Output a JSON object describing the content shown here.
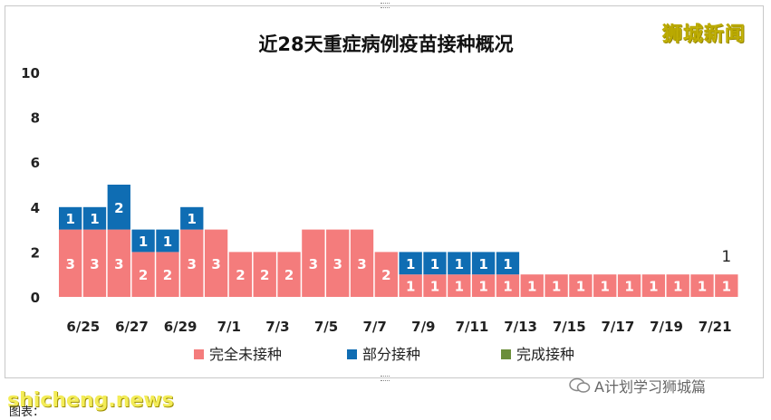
{
  "watermark_top": "狮城新闻",
  "watermark_bottom": "shicheng.news",
  "caption": "图表：",
  "wechat_label": "A计划学习狮城篇",
  "chart_data": {
    "type": "bar",
    "stacked": true,
    "title": "近28天重症病例疫苗接种概况",
    "ylim": [
      0,
      10
    ],
    "yticks": [
      "0",
      "2",
      "4",
      "6",
      "8",
      "10"
    ],
    "categories": [
      "6/25",
      "6/26",
      "6/27",
      "6/28",
      "6/29",
      "6/30",
      "7/1",
      "7/2",
      "7/3",
      "7/4",
      "7/5",
      "7/6",
      "7/7",
      "7/8",
      "7/9",
      "7/10",
      "7/11",
      "7/12",
      "7/13",
      "7/14",
      "7/15",
      "7/16",
      "7/17",
      "7/18",
      "7/19",
      "7/20",
      "7/21",
      "7/22"
    ],
    "xtick_labels": [
      "6/25",
      "6/27",
      "6/29",
      "7/1",
      "7/3",
      "7/5",
      "7/7",
      "7/9",
      "7/11",
      "7/13",
      "7/15",
      "7/17",
      "7/19",
      "7/21"
    ],
    "series": [
      {
        "name": "完全未接种",
        "color": "#f47c7c",
        "values": [
          3,
          3,
          3,
          2,
          2,
          3,
          3,
          2,
          2,
          2,
          3,
          3,
          3,
          2,
          1,
          1,
          1,
          1,
          1,
          1,
          1,
          1,
          1,
          1,
          1,
          1,
          1,
          1
        ]
      },
      {
        "name": "部分接种",
        "color": "#0f6db3",
        "values": [
          1,
          1,
          2,
          1,
          1,
          1,
          0,
          0,
          0,
          0,
          0,
          0,
          0,
          0,
          1,
          1,
          1,
          1,
          1,
          0,
          0,
          0,
          0,
          0,
          0,
          0,
          0,
          0
        ]
      },
      {
        "name": "完成接种",
        "color": "#6b8e3a",
        "values": [
          0,
          0,
          0,
          0,
          0,
          0,
          0,
          0,
          0,
          0,
          0,
          0,
          0,
          0,
          0,
          0,
          0,
          0,
          0,
          0,
          0,
          0,
          0,
          0,
          0,
          0,
          0,
          0
        ]
      }
    ],
    "total_annotation": {
      "category": "7/22",
      "text": "1"
    },
    "legend_position": "bottom",
    "grid": false
  }
}
